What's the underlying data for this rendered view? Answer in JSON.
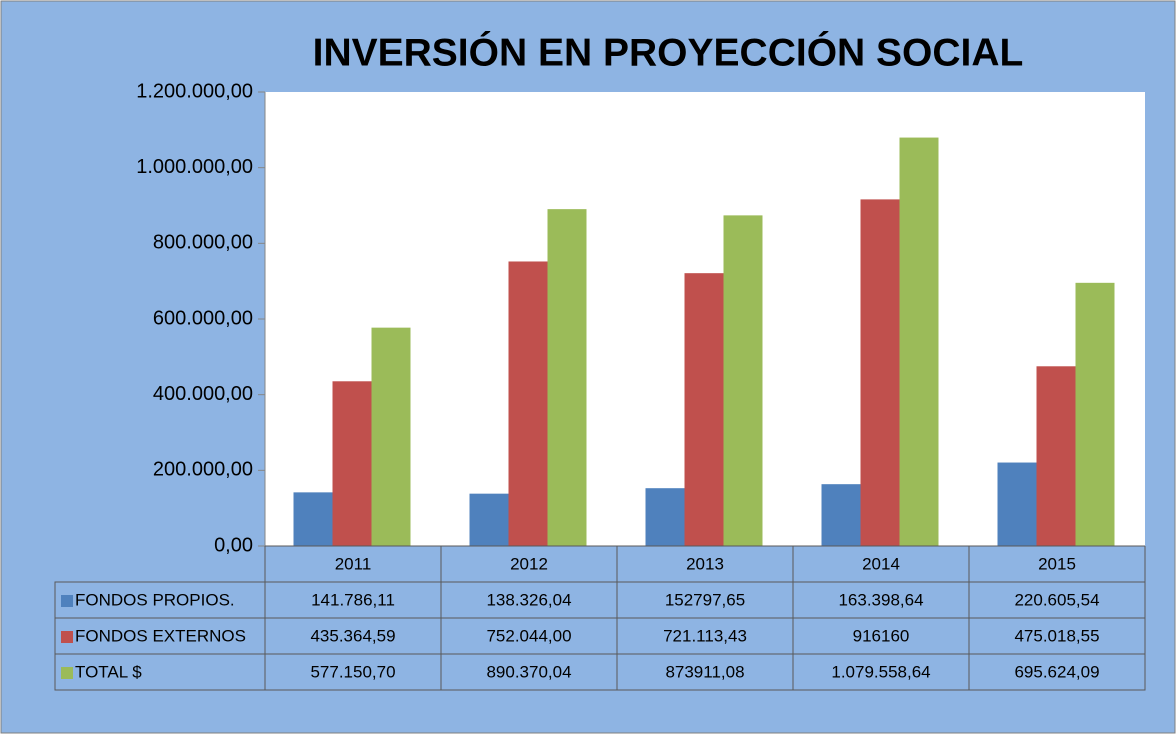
{
  "chart_data": {
    "type": "bar",
    "title": "INVERSIÓN EN PROYECCIÓN SOCIAL",
    "categories": [
      "2011",
      "2012",
      "2013",
      "2014",
      "2015"
    ],
    "series": [
      {
        "name": "FONDOS PROPIOS.",
        "color": "#4f81bd",
        "values": [
          141786.11,
          138326.04,
          152797.65,
          163398.64,
          220605.54
        ],
        "value_labels": [
          "141.786,11",
          "138.326,04",
          "152797,65",
          "163.398,64",
          "220.605,54"
        ]
      },
      {
        "name": "FONDOS EXTERNOS",
        "color": "#c0504d",
        "values": [
          435364.59,
          752044.0,
          721113.43,
          916160,
          475018.55
        ],
        "value_labels": [
          "435.364,59",
          "752.044,00",
          "721.113,43",
          "916160",
          "475.018,55"
        ]
      },
      {
        "name": "TOTAL $",
        "color": "#9bbb59",
        "values": [
          577150.7,
          890370.04,
          873911.08,
          1079558.64,
          695624.09
        ],
        "value_labels": [
          "577.150,70",
          "890.370,04",
          "873911,08",
          "1.079.558,64",
          "695.624,09"
        ]
      }
    ],
    "ylim": [
      0,
      1200000
    ],
    "yticks": [
      {
        "value": 0,
        "label": "0,00"
      },
      {
        "value": 200000,
        "label": "200.000,00"
      },
      {
        "value": 400000,
        "label": "400.000,00"
      },
      {
        "value": 600000,
        "label": "600.000,00"
      },
      {
        "value": 800000,
        "label": "800.000,00"
      },
      {
        "value": 1000000,
        "label": "1.000.000,00"
      },
      {
        "value": 1200000,
        "label": "1.200.000,00"
      }
    ],
    "grid": false
  }
}
